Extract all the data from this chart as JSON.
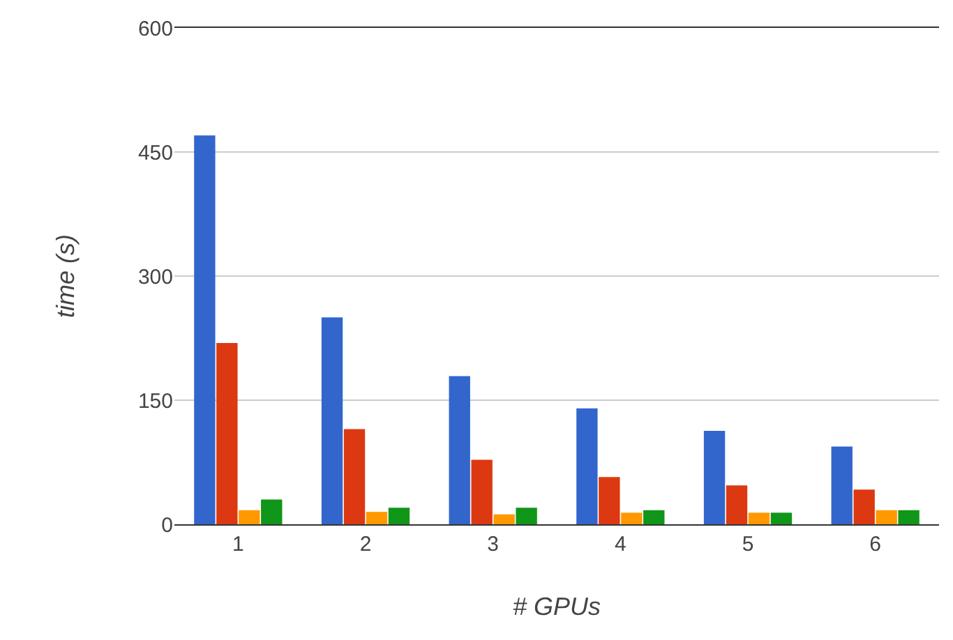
{
  "chart_data": {
    "type": "bar",
    "xlabel": "# GPUs",
    "ylabel": "time (s)",
    "categories": [
      "1",
      "2",
      "3",
      "4",
      "5",
      "6"
    ],
    "series": [
      {
        "color": "#3366cc",
        "values": [
          470,
          250,
          179,
          140,
          113,
          94
        ]
      },
      {
        "color": "#dc3912",
        "values": [
          219,
          115,
          78,
          57,
          47,
          42
        ]
      },
      {
        "color": "#ff9900",
        "values": [
          17,
          15,
          12,
          14,
          14,
          17
        ]
      },
      {
        "color": "#109618",
        "values": [
          30,
          20,
          20,
          17,
          14,
          17
        ]
      }
    ],
    "ylim": [
      0,
      600
    ],
    "yticks": [
      0,
      150,
      300,
      450,
      600
    ],
    "grid": "y"
  }
}
